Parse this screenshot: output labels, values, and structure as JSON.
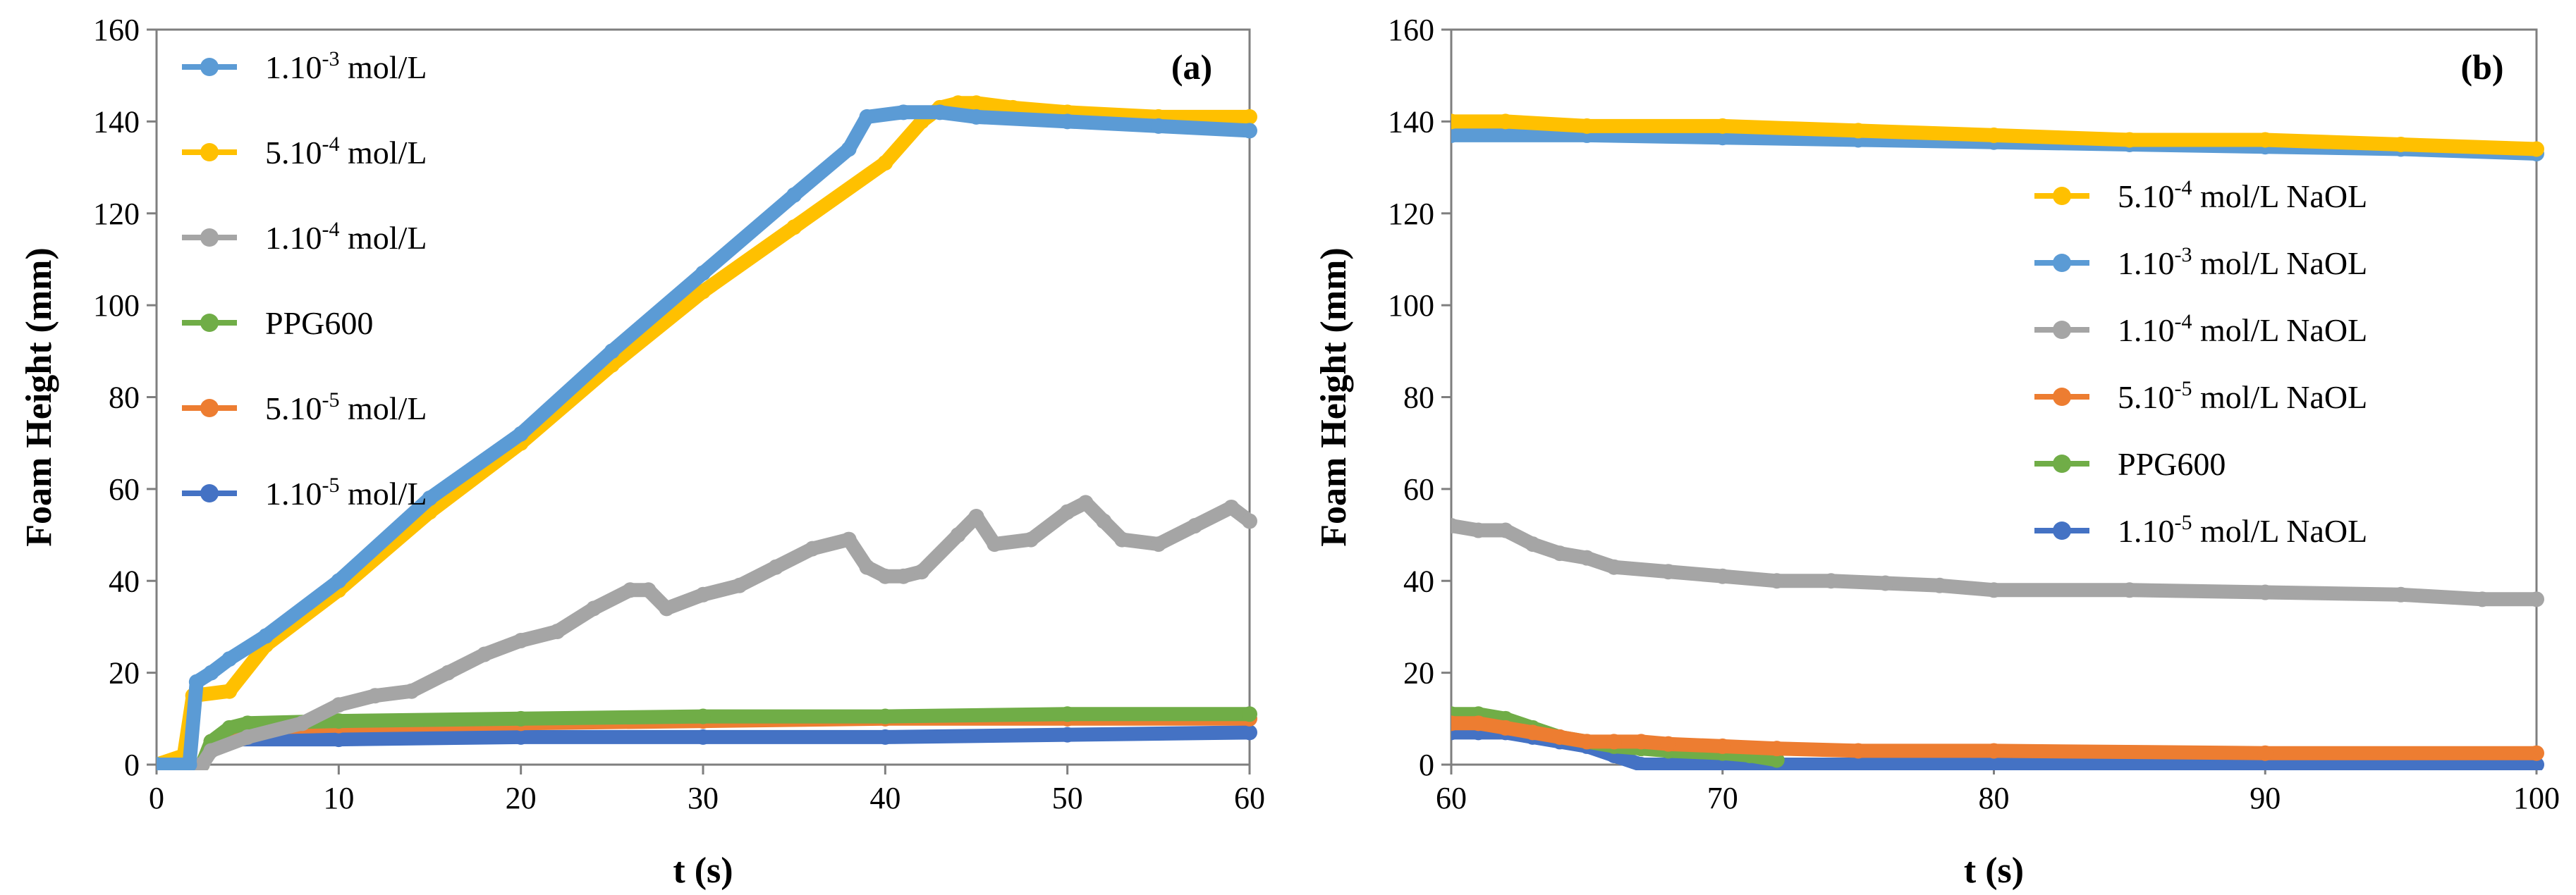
{
  "chart_data": [
    {
      "type": "line",
      "panel_label": "(a)",
      "xlabel": "t (s)",
      "ylabel": "Foam Height (mm)",
      "xlim": [
        0,
        60
      ],
      "ylim": [
        0,
        160
      ],
      "xticks": [
        "0",
        "10",
        "20",
        "30",
        "40",
        "50",
        "60"
      ],
      "yticks": [
        "0",
        "20",
        "40",
        "60",
        "80",
        "100",
        "120",
        "140",
        "160"
      ],
      "grid": false,
      "legend_position": "top-left",
      "series": [
        {
          "name": "1.10-3 mol/L",
          "legend": {
            "pre": "1.10",
            "sup": "-3",
            "post": " mol/L"
          },
          "color": "#5b9bd5",
          "x": [
            0,
            1.8,
            2.2,
            3,
            4,
            6,
            10,
            15,
            20,
            25,
            30,
            35,
            38,
            39,
            41,
            43,
            45,
            50,
            55,
            60
          ],
          "y": [
            0,
            0,
            18,
            20,
            23,
            28,
            40,
            58,
            72,
            90,
            107,
            124,
            134,
            141,
            142,
            142,
            141,
            140,
            139,
            138
          ]
        },
        {
          "name": "5.10-4 mol/L",
          "legend": {
            "pre": "5.10",
            "sup": "-4",
            "post": " mol/L"
          },
          "color": "#ffc000",
          "x": [
            0,
            1.5,
            2,
            4,
            6,
            10,
            15,
            20,
            25,
            30,
            35,
            40,
            42,
            43,
            44,
            45,
            47,
            50,
            55,
            60
          ],
          "y": [
            0,
            2,
            15,
            16,
            26,
            38,
            55,
            70,
            87,
            103,
            117,
            131,
            140,
            143,
            144,
            144,
            143,
            142,
            141,
            141
          ]
        },
        {
          "name": "1.10-4 mol/L",
          "legend": {
            "pre": "1.10",
            "sup": "-4",
            "post": " mol/L"
          },
          "color": "#a5a5a5",
          "x": [
            0,
            2.5,
            3,
            5,
            8,
            10,
            12,
            14,
            16,
            18,
            20,
            22,
            24,
            26,
            27,
            28,
            30,
            32,
            34,
            36,
            38,
            39,
            40,
            41,
            42,
            44,
            45,
            46,
            48,
            50,
            51,
            52,
            53,
            55,
            57,
            59,
            60
          ],
          "y": [
            0,
            0,
            3,
            6,
            9,
            13,
            15,
            16,
            20,
            24,
            27,
            29,
            34,
            38,
            38,
            34,
            37,
            39,
            43,
            47,
            49,
            43,
            41,
            41,
            42,
            50,
            54,
            48,
            49,
            55,
            57,
            53,
            49,
            48,
            52,
            56,
            53
          ]
        },
        {
          "name": "PPG600",
          "legend": {
            "pre": "PPG600",
            "sup": "",
            "post": ""
          },
          "color": "#70ad47",
          "x": [
            0,
            2.5,
            3,
            4,
            5,
            10,
            20,
            30,
            40,
            50,
            60
          ],
          "y": [
            0,
            0,
            5,
            8,
            9,
            9.5,
            10,
            10.5,
            10.5,
            11,
            11
          ]
        },
        {
          "name": "5.10-5 mol/L",
          "legend": {
            "pre": "5.10",
            "sup": "-5",
            "post": " mol/L"
          },
          "color": "#ed7d31",
          "x": [
            0,
            2.5,
            3,
            4,
            5,
            10,
            20,
            30,
            40,
            50,
            60
          ],
          "y": [
            0,
            0,
            5,
            7,
            8,
            8.5,
            9,
            9.5,
            10,
            10,
            10
          ]
        },
        {
          "name": "1.10-5 mol/L",
          "legend": {
            "pre": "1.10",
            "sup": "-5",
            "post": " mol/L"
          },
          "color": "#4472c4",
          "x": [
            0,
            2.5,
            3,
            4,
            10,
            20,
            30,
            40,
            50,
            60
          ],
          "y": [
            0,
            0,
            5,
            5.5,
            5.5,
            6,
            6,
            6,
            6.5,
            7
          ]
        }
      ]
    },
    {
      "type": "line",
      "panel_label": "(b)",
      "xlabel": "t (s)",
      "ylabel": "Foam Height (mm)",
      "xlim": [
        60,
        100
      ],
      "ylim": [
        0,
        160
      ],
      "xticks": [
        "60",
        "70",
        "80",
        "90",
        "100"
      ],
      "yticks": [
        "0",
        "20",
        "40",
        "60",
        "80",
        "100",
        "120",
        "140",
        "160"
      ],
      "grid": false,
      "legend_position": "right",
      "series": [
        {
          "name": "5.10-4 mol/L NaOL",
          "legend": {
            "pre": "5.10",
            "sup": "-4",
            "post": " mol/L NaOL"
          },
          "color": "#ffc000",
          "x": [
            60,
            62,
            65,
            70,
            75,
            80,
            85,
            90,
            95,
            100
          ],
          "y": [
            140,
            140,
            139,
            139,
            138,
            137,
            136,
            136,
            135,
            134
          ]
        },
        {
          "name": "1.10-3 mol/L NaOL",
          "legend": {
            "pre": "1.10",
            "sup": "-3",
            "post": " mol/L NaOL"
          },
          "color": "#5b9bd5",
          "x": [
            60,
            65,
            70,
            75,
            80,
            85,
            90,
            95,
            100
          ],
          "y": [
            137,
            137,
            136.5,
            136,
            135.5,
            135,
            134.5,
            134,
            133
          ]
        },
        {
          "name": "1.10-4 mol/L NaOL",
          "legend": {
            "pre": "1.10",
            "sup": "-4",
            "post": " mol/L NaOL"
          },
          "color": "#a5a5a5",
          "x": [
            60,
            61,
            62,
            63,
            64,
            65,
            66,
            68,
            70,
            72,
            74,
            76,
            78,
            80,
            85,
            90,
            95,
            98,
            100
          ],
          "y": [
            52,
            51,
            51,
            48,
            46,
            45,
            43,
            42,
            41,
            40,
            40,
            39.5,
            39,
            38,
            38,
            37.5,
            37,
            36,
            36
          ]
        },
        {
          "name": "5.10-5 mol/L NaOL",
          "legend": {
            "pre": "5.10",
            "sup": "-5",
            "post": " mol/L NaOL"
          },
          "color": "#ed7d31",
          "x": [
            60,
            61,
            62,
            63,
            64,
            65,
            66,
            67,
            68,
            70,
            72,
            75,
            80,
            90,
            100
          ],
          "y": [
            9,
            9,
            8,
            7,
            6,
            5,
            5,
            5,
            4.5,
            4,
            3.5,
            3,
            3,
            2.5,
            2.5
          ]
        },
        {
          "name": "PPG600",
          "legend": {
            "pre": "PPG600",
            "sup": "",
            "post": ""
          },
          "color": "#70ad47",
          "x": [
            60,
            61,
            62,
            63,
            64,
            65,
            66,
            67,
            68,
            70,
            71,
            72
          ],
          "y": [
            11,
            11,
            10,
            8,
            6,
            5,
            4,
            3.5,
            3,
            2.5,
            2,
            1
          ]
        },
        {
          "name": "1.10-5 mol/L NaOL",
          "legend": {
            "pre": "1.10",
            "sup": "-5",
            "post": " mol/L NaOL"
          },
          "color": "#4472c4",
          "x": [
            60,
            61,
            62,
            63,
            64,
            65,
            66,
            67,
            68,
            70,
            80,
            90,
            100
          ],
          "y": [
            7,
            7,
            7,
            6,
            5,
            4,
            2,
            0,
            0,
            0,
            0,
            0,
            0
          ]
        }
      ]
    }
  ]
}
